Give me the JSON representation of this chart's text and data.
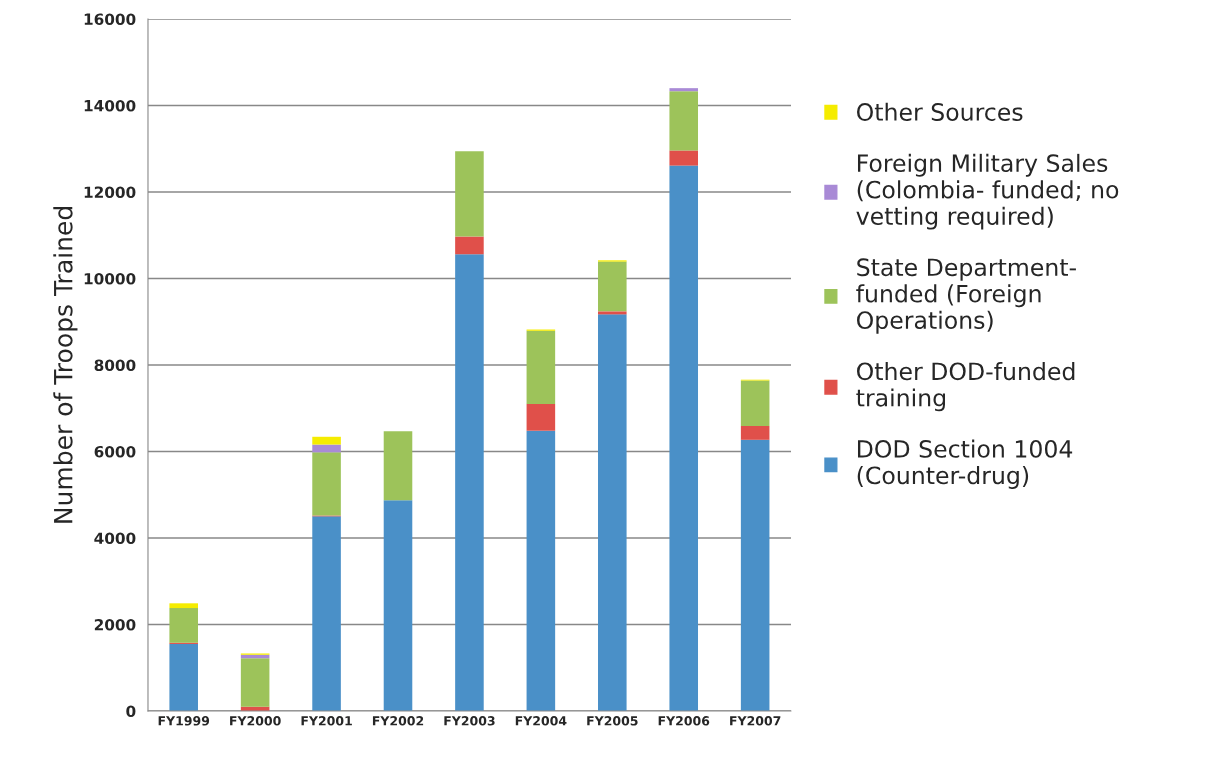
{
  "chart_data": {
    "type": "bar",
    "stacked": true,
    "ylabel": "Number of Troops Trained",
    "categories": [
      "FY1999",
      "FY2000",
      "FY2001",
      "FY2002",
      "FY2003",
      "FY2004",
      "FY2005",
      "FY2006",
      "FY2007"
    ],
    "series": [
      {
        "name": "DOD Section 1004 (Counter-drug)",
        "color": "#4a90c8",
        "values": [
          1550,
          0,
          4500,
          4870,
          10560,
          6480,
          9170,
          12610,
          6270
        ]
      },
      {
        "name": "Other DOD-funded training",
        "color": "#e0504a",
        "values": [
          30,
          100,
          20,
          0,
          410,
          620,
          70,
          350,
          320
        ]
      },
      {
        "name": "State Department- funded (Foreign Operations)",
        "color": "#9dc35a",
        "values": [
          800,
          1120,
          1460,
          1600,
          1970,
          1690,
          1150,
          1370,
          1050
        ]
      },
      {
        "name": "Foreign Military Sales (Colombia- funded; no vetting required)",
        "color": "#a98ad6",
        "values": [
          0,
          80,
          180,
          0,
          0,
          0,
          0,
          70,
          0
        ]
      },
      {
        "name": "Other Sources",
        "color": "#f5ec00",
        "values": [
          110,
          30,
          180,
          0,
          0,
          30,
          30,
          0,
          20
        ]
      }
    ],
    "ylim": [
      0,
      16000
    ],
    "yticks": [
      0,
      2000,
      4000,
      6000,
      8000,
      10000,
      12000,
      14000,
      16000
    ],
    "grid": "y",
    "legend": "right"
  }
}
